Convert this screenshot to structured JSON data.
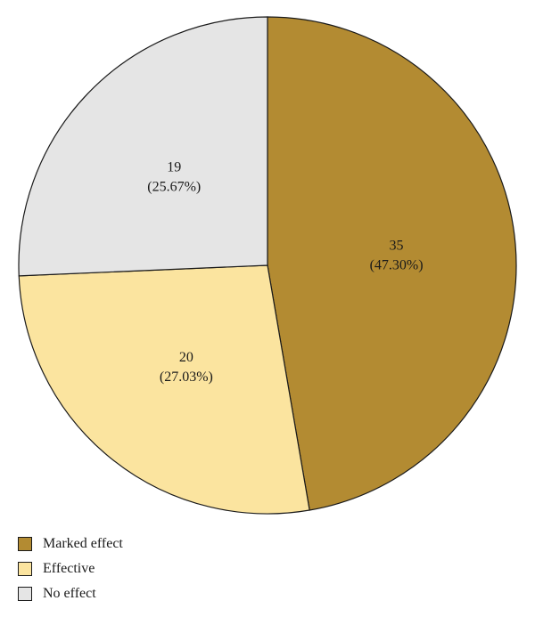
{
  "chart_data": {
    "type": "pie",
    "title": "",
    "legend_position": "bottom-left",
    "slices": [
      {
        "name": "Marked effect",
        "value": 35,
        "percent_label": "(47.30%)",
        "value_label": "35",
        "color": "#b38b32"
      },
      {
        "name": "Effective",
        "value": 20,
        "percent_label": "(27.03%)",
        "value_label": "20",
        "color": "#fbe49f"
      },
      {
        "name": "No effect",
        "value": 19,
        "percent_label": "(25.67%)",
        "value_label": "19",
        "color": "#e5e5e5"
      }
    ]
  }
}
